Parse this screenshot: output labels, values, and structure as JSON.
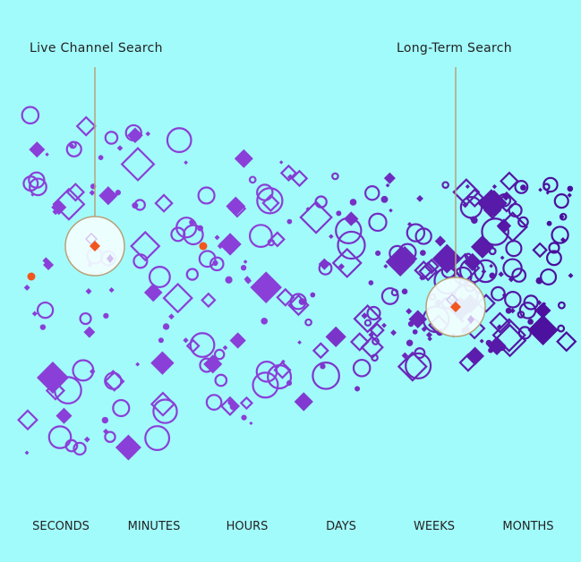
{
  "callouts": {
    "left": "Live Channel Search",
    "right": "Long-Term Search"
  },
  "axis": {
    "labels": [
      "SECONDS",
      "MINUTES",
      "HOURS",
      "DAYS",
      "WEEKS",
      "MONTHS"
    ]
  },
  "colors": {
    "background": "#a2fbfb",
    "shape_left": "#8a3fd8",
    "shape_right": "#4a0f9c",
    "highlight": "#f0561e",
    "lens_fill": "#f2fefe",
    "lens_stroke": "#b7a27a"
  }
}
